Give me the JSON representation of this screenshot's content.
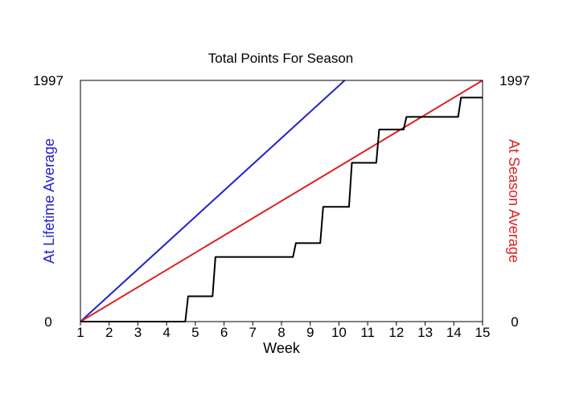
{
  "chart_data": {
    "type": "line",
    "title": "Total Points For Season",
    "xlabel": "Week",
    "ylabel_left": "At Lifetime Average",
    "ylabel_right": "At Season Average",
    "xlim": [
      1,
      15
    ],
    "ylim": [
      0,
      1997
    ],
    "x_ticks": [
      1,
      2,
      3,
      4,
      5,
      6,
      7,
      8,
      9,
      10,
      11,
      12,
      13,
      14,
      15
    ],
    "y_ticks_left": [
      0,
      1997
    ],
    "y_ticks_right": [
      0,
      1997
    ],
    "grid": false,
    "colors": {
      "lifetime": "#2222cc",
      "season": "#dd2222",
      "actual": "#000000",
      "ylabel_left": "#2222cc",
      "ylabel_right": "#dd2222"
    },
    "series": [
      {
        "key": "lifetime",
        "style": "line",
        "x": [
          1,
          10.2
        ],
        "y": [
          0,
          1997
        ]
      },
      {
        "key": "season",
        "style": "line",
        "x": [
          1,
          15
        ],
        "y": [
          0,
          1997
        ]
      },
      {
        "key": "actual",
        "style": "step",
        "x": [
          1,
          4.65,
          4.75,
          5.6,
          5.7,
          8.4,
          8.5,
          9.35,
          9.45,
          10.35,
          10.45,
          11.3,
          11.4,
          12.25,
          12.35,
          14.15,
          14.25,
          15
        ],
        "y": [
          0,
          0,
          210,
          210,
          535,
          535,
          650,
          650,
          950,
          950,
          1315,
          1315,
          1590,
          1590,
          1695,
          1695,
          1855,
          1855
        ]
      }
    ]
  }
}
